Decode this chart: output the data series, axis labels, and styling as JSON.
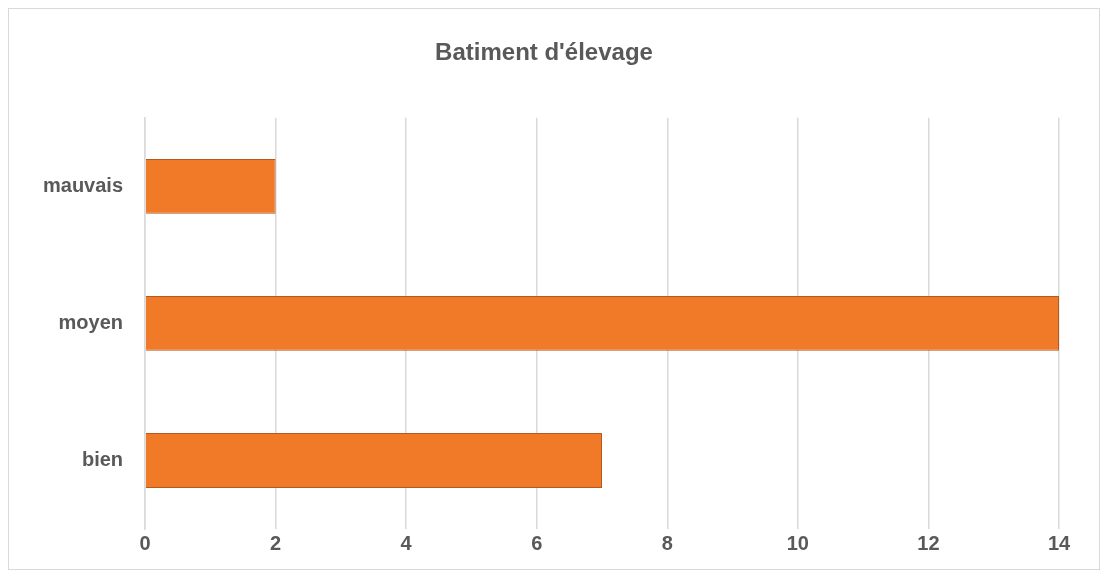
{
  "chart_data": {
    "type": "bar",
    "title": "Batiment d'élevage",
    "orientation": "horizontal",
    "categories": [
      "mauvais",
      "moyen",
      "bien"
    ],
    "values": [
      2,
      14,
      7
    ],
    "color": "#f07a28",
    "xlim": [
      0,
      14
    ],
    "xticks": [
      0,
      2,
      4,
      6,
      8,
      10,
      12,
      14
    ],
    "grid": "x",
    "legend": false
  }
}
